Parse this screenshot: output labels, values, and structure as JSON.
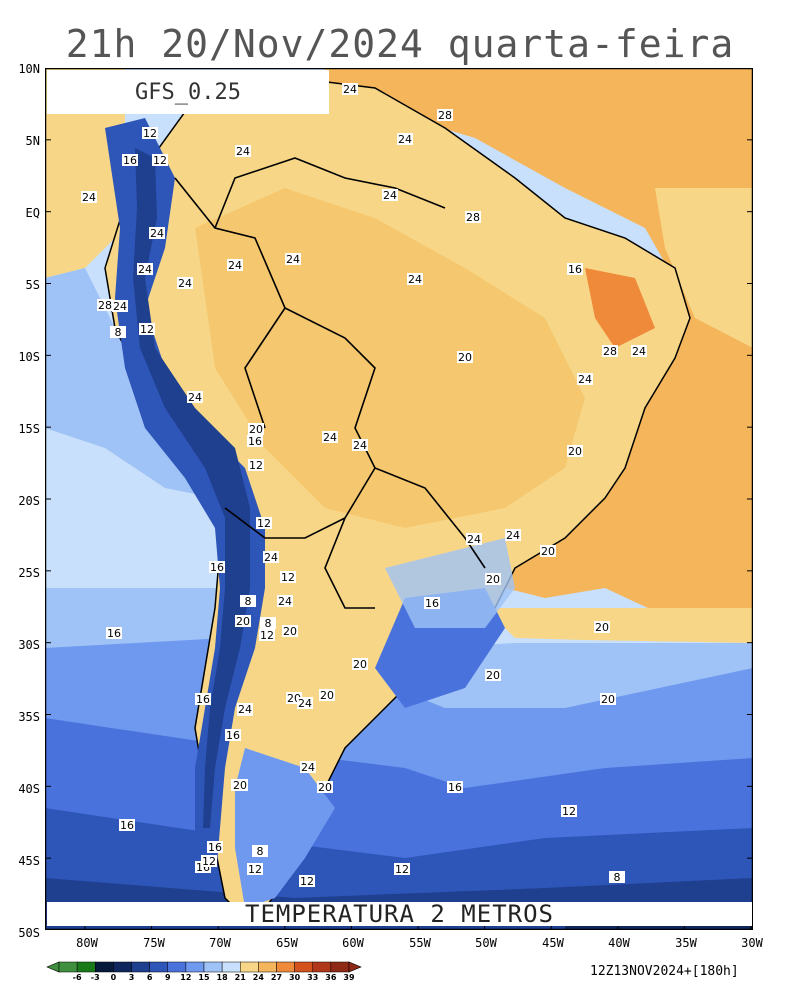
{
  "title": "21h 20/Nov/2024 quarta-feira",
  "model": "GFS_0.25",
  "field": "TEMPERATURA 2 METROS",
  "run": "12Z13NOV2024+[180h]",
  "latitude_labels": [
    "10N",
    "5N",
    "EQ",
    "5S",
    "10S",
    "15S",
    "20S",
    "25S",
    "30S",
    "35S",
    "40S",
    "45S",
    "50S"
  ],
  "longitude_labels": [
    "80W",
    "75W",
    "70W",
    "65W",
    "60W",
    "55W",
    "50W",
    "45W",
    "40W",
    "35W",
    "30W"
  ],
  "colorbar": {
    "ticks": [
      "-6",
      "-3",
      "0",
      "3",
      "6",
      "9",
      "12",
      "15",
      "18",
      "21",
      "24",
      "27",
      "30",
      "33",
      "36",
      "39"
    ],
    "colors": [
      "#3f8f3f",
      "#1a7a1a",
      "#071a3a",
      "#10275e",
      "#1f3f8f",
      "#2e55b8",
      "#4a72dd",
      "#6f99ef",
      "#9fc3f6",
      "#c8e0fb",
      "#f7d787",
      "#f5b55b",
      "#f08a3b",
      "#d4521c",
      "#b1371a",
      "#8f2a16"
    ]
  },
  "contour_labels": [
    "24",
    "28",
    "24",
    "24",
    "12",
    "24",
    "16",
    "12",
    "24",
    "24",
    "28",
    "24",
    "24",
    "24",
    "24",
    "24",
    "28",
    "24",
    "24",
    "16",
    "20",
    "20",
    "12",
    "24",
    "24",
    "8",
    "28",
    "24",
    "24",
    "24",
    "24",
    "20",
    "16",
    "12",
    "20",
    "12",
    "20",
    "24",
    "24",
    "20",
    "12",
    "8",
    "16",
    "12",
    "16",
    "20",
    "20",
    "8",
    "20",
    "20",
    "24",
    "20",
    "16",
    "16",
    "20",
    "24",
    "16",
    "20",
    "16",
    "12",
    "24",
    "16",
    "20",
    "16",
    "24",
    "20",
    "12",
    "16",
    "12",
    "8",
    "12",
    "16",
    "12",
    "8"
  ]
}
